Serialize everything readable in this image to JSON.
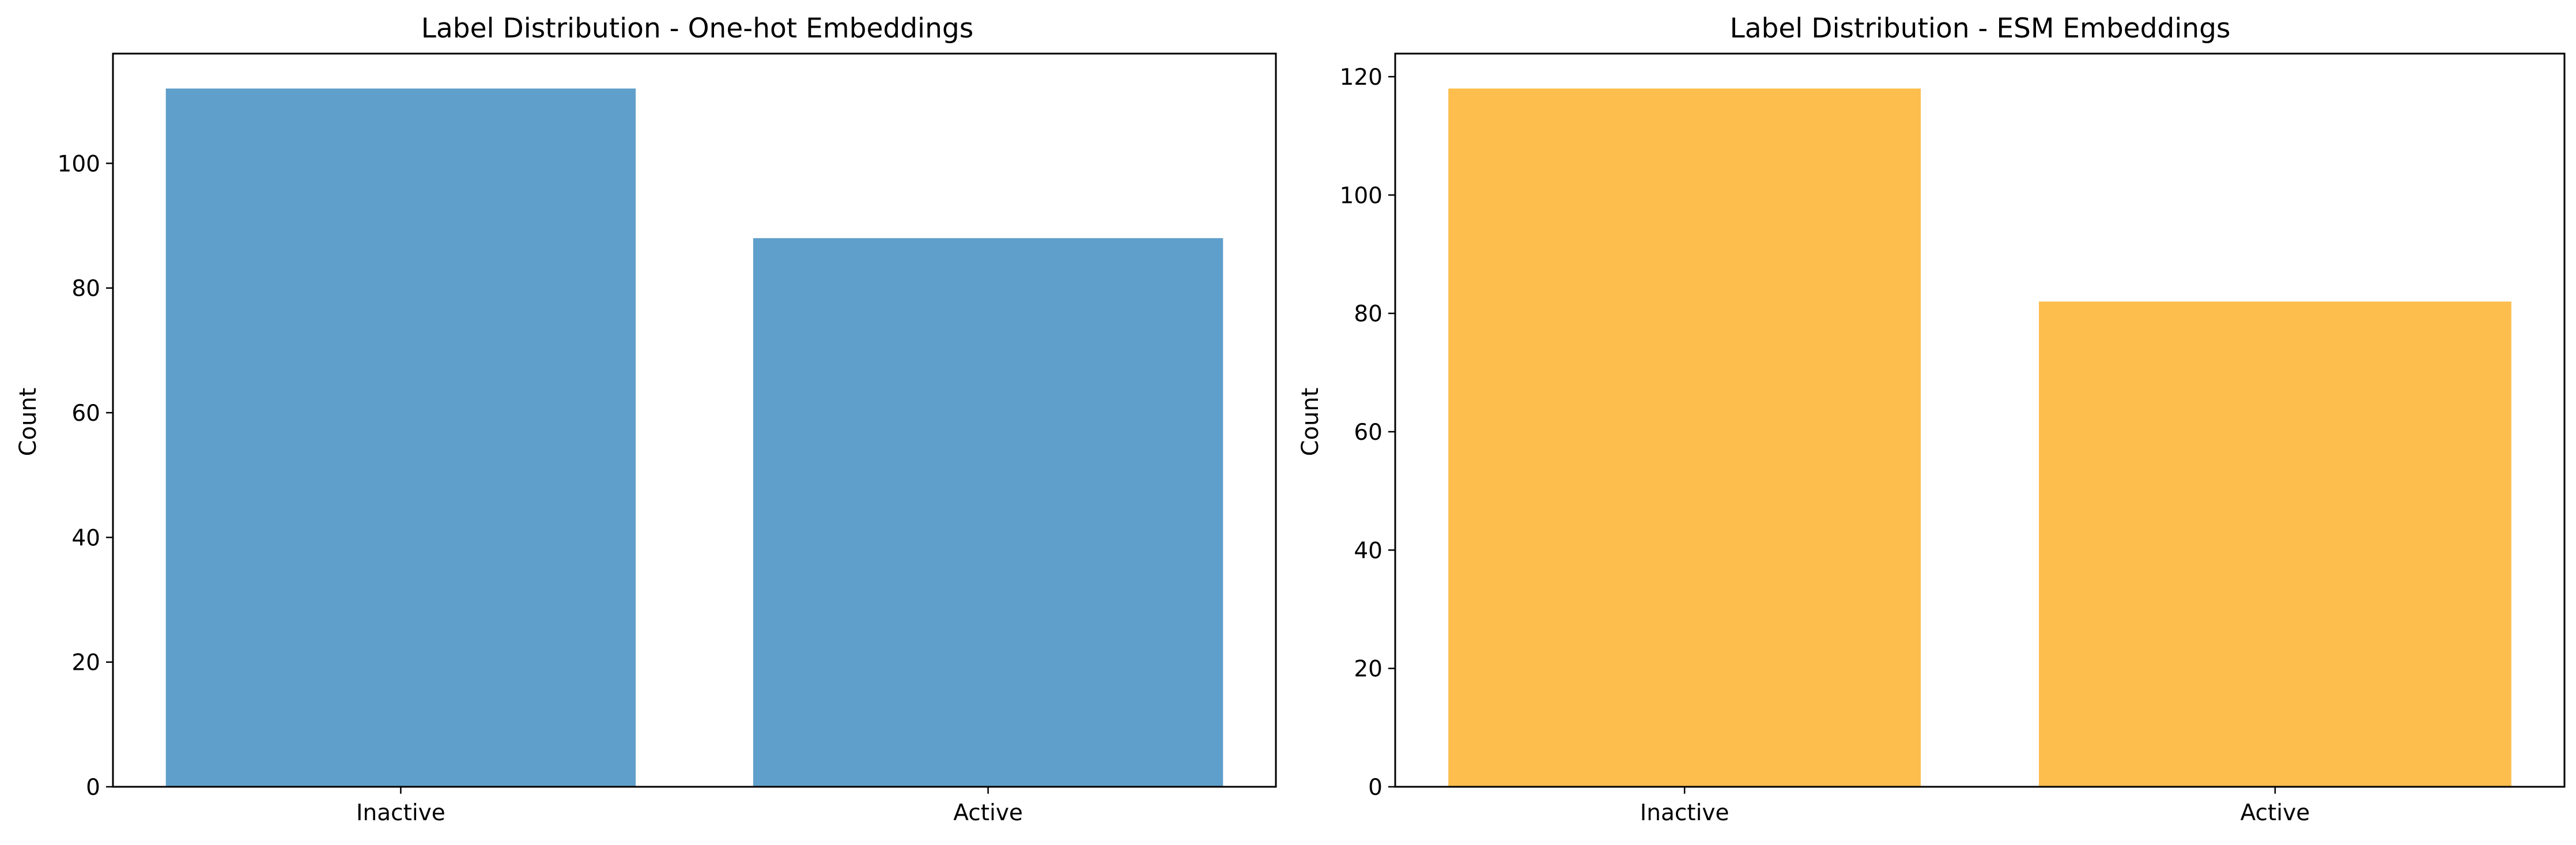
{
  "chart_data": [
    {
      "type": "bar",
      "title": "Label Distribution - One-hot Embeddings",
      "xlabel": "",
      "ylabel": "Count",
      "categories": [
        "Inactive",
        "Active"
      ],
      "values": [
        112,
        88
      ],
      "color": "#5f9fcb",
      "ylim": [
        0,
        117.6
      ],
      "yticks": [
        0,
        20,
        40,
        60,
        80,
        100
      ],
      "grid": false,
      "legend": "none"
    },
    {
      "type": "bar",
      "title": "Label Distribution - ESM Embeddings",
      "xlabel": "",
      "ylabel": "Count",
      "categories": [
        "Inactive",
        "Active"
      ],
      "values": [
        118,
        82
      ],
      "color": "#fdbe4d",
      "ylim": [
        0,
        123.9
      ],
      "yticks": [
        0,
        20,
        40,
        60,
        80,
        100,
        120
      ],
      "grid": false,
      "legend": "none"
    }
  ]
}
